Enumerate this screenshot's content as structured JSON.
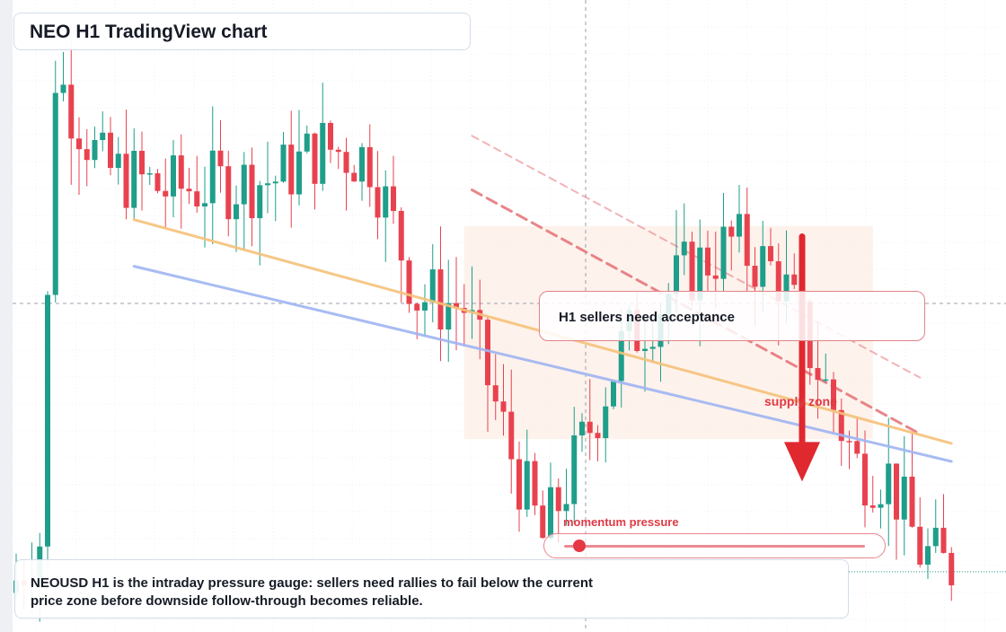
{
  "title": "NEO H1 TradingView chart",
  "annotations": {
    "callout": "H1 sellers need acceptance",
    "supply_zone": "supply zone",
    "momentum_label": "momentum pressure",
    "momentum_level": 0.05
  },
  "caption": {
    "line1": "NEOUSD H1 is the intraday pressure gauge: sellers need rallies to fail below the current",
    "line2": "price zone before downside follow-through becomes reliable."
  },
  "colors": {
    "up": "#1f9e8a",
    "down": "#e8424f",
    "ma_fast": "#f6c27a",
    "ma_slow": "#9fb5f2",
    "trendline": "#e6787d",
    "arrow": "#e0282f",
    "zone": "#fdeee6"
  },
  "chart_data": {
    "type": "candlestick",
    "title": "NEO H1 TradingView chart",
    "seed": 7,
    "count": 120,
    "anchors": [
      [
        0,
        6.5
      ],
      [
        4,
        7.0
      ],
      [
        6,
        11.4
      ],
      [
        12,
        10.5
      ],
      [
        20,
        10.3
      ],
      [
        34,
        10.4
      ],
      [
        40,
        10.7
      ],
      [
        46,
        10.6
      ],
      [
        52,
        9.3
      ],
      [
        58,
        9.2
      ],
      [
        64,
        7.8
      ],
      [
        68,
        7.0
      ],
      [
        72,
        7.7
      ],
      [
        78,
        8.8
      ],
      [
        86,
        9.5
      ],
      [
        92,
        9.8
      ],
      [
        98,
        9.5
      ],
      [
        102,
        8.8
      ],
      [
        108,
        7.7
      ],
      [
        112,
        7.6
      ],
      [
        116,
        6.9
      ],
      [
        119,
        6.75
      ]
    ],
    "high_peak": {
      "index": 6,
      "value": 11.6
    },
    "ylim": [
      6.25,
      11.6
    ],
    "moving_averages": [
      {
        "name": "",
        "from": [
          15,
          10.02
        ],
        "to": [
          119,
          7.91
        ]
      },
      {
        "name": "",
        "from": [
          15,
          9.58
        ],
        "to": [
          119,
          7.74
        ]
      }
    ],
    "trendlines": [
      {
        "style": "dashed",
        "from": [
          58,
          10.3
        ],
        "to": [
          115,
          8.0
        ]
      },
      {
        "style": "dashed-faint",
        "from": [
          58,
          10.81
        ],
        "to": [
          115,
          8.53
        ]
      }
    ],
    "supply_zone": {
      "x": [
        57,
        109
      ],
      "y": [
        7.95,
        9.96
      ]
    },
    "arrow": {
      "x": 100,
      "from": 9.86,
      "to": 7.55
    },
    "current_price": 6.7
  }
}
